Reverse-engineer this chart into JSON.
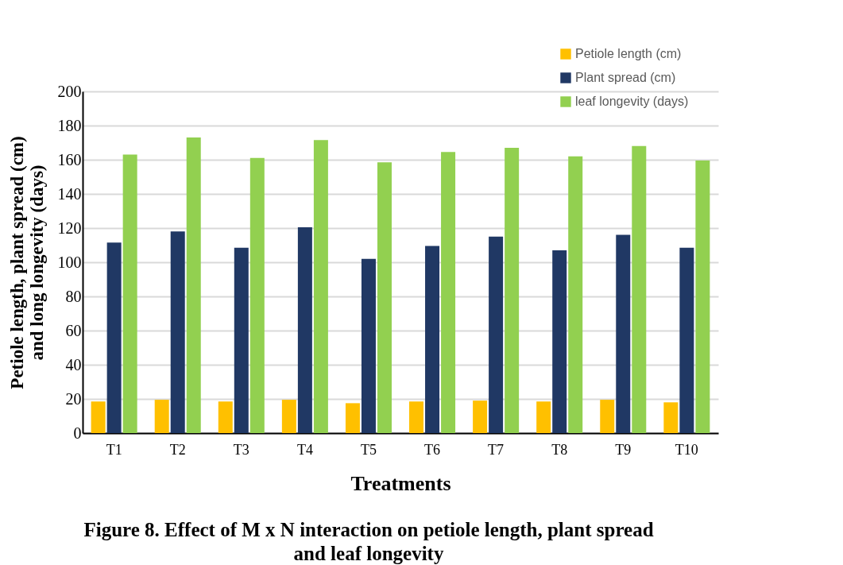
{
  "chart_data": {
    "type": "bar",
    "xlabel": "Treatments",
    "ylabel": "Petiole length, plant spread (cm) and long longevity (days)",
    "categories": [
      "T1",
      "T2",
      "T3",
      "T4",
      "T5",
      "T6",
      "T7",
      "T8",
      "T9",
      "T10"
    ],
    "series": [
      {
        "name": "Petiole length (cm)",
        "color": "#ffc000",
        "values": [
          18.5,
          19.5,
          18.5,
          19.5,
          17.5,
          18.5,
          19,
          18.5,
          19.5,
          18
        ]
      },
      {
        "name": "Plant spread (cm)",
        "color": "#203864",
        "values": [
          111.5,
          118,
          108.5,
          120.5,
          102,
          109.5,
          115,
          107,
          116,
          108.5
        ]
      },
      {
        "name": "leaf longevity (days)",
        "color": "#92d050",
        "values": [
          163,
          173,
          161,
          171.5,
          158.5,
          164.5,
          167,
          162,
          168,
          159.5
        ]
      }
    ],
    "ylim": [
      0,
      200
    ],
    "yticks": [
      0,
      20,
      40,
      60,
      80,
      100,
      120,
      140,
      160,
      180,
      200
    ],
    "grid": "y",
    "legend": "top right",
    "annotations": [
      "Figure 8. Effect of M x N interaction on petiole length, plant spread and leaf longevity"
    ]
  }
}
